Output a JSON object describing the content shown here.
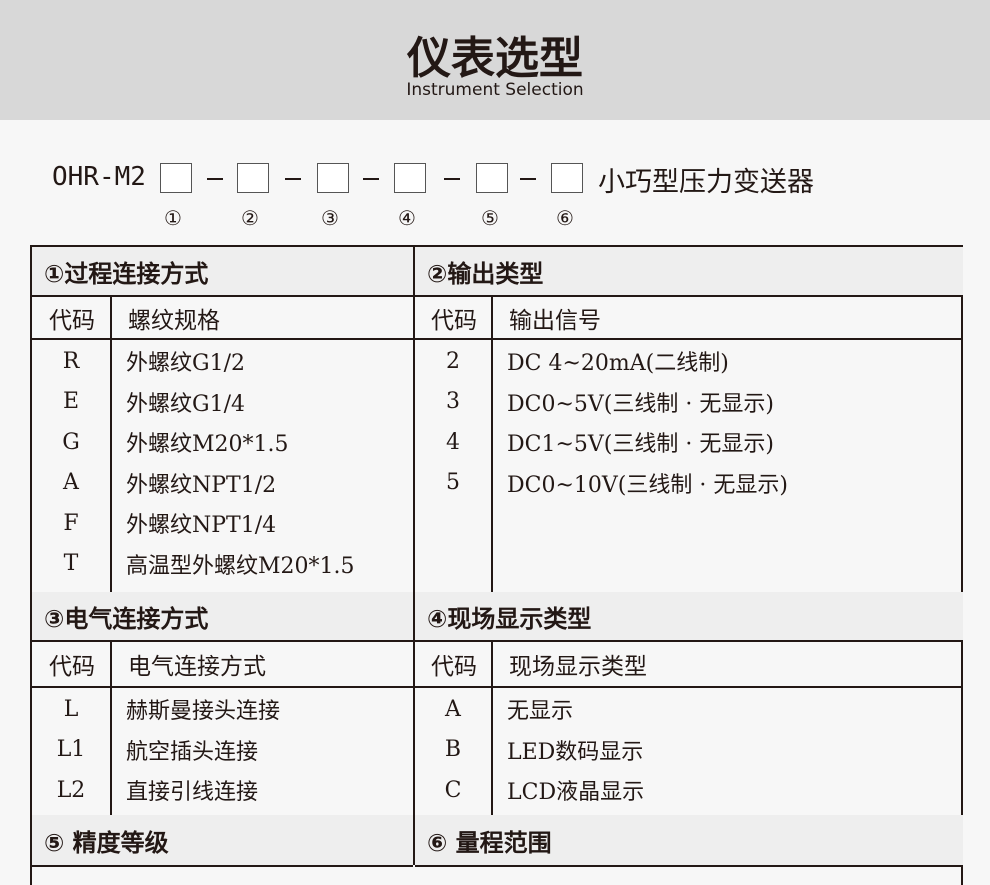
{
  "header": {
    "title": "仪表选型",
    "subtitle": "Instrument Selection"
  },
  "model": {
    "prefix": "OHR-M2",
    "suffix": "小巧型压力变送器",
    "positions": [
      "①",
      "②",
      "③",
      "④",
      "⑤",
      "⑥"
    ]
  },
  "sections": [
    {
      "title": "①过程连接方式",
      "code_header": "代码",
      "desc_header": "螺纹规格",
      "rows": [
        [
          "R",
          "外螺纹G1/2"
        ],
        [
          "E",
          "外螺纹G1/4"
        ],
        [
          "G",
          "外螺纹M20*1.5"
        ],
        [
          "A",
          "外螺纹NPT1/2"
        ],
        [
          "F",
          "外螺纹NPT1/4"
        ],
        [
          "T",
          "高温型外螺纹M20*1.5"
        ]
      ]
    },
    {
      "title": "②输出类型",
      "code_header": "代码",
      "desc_header": "输出信号",
      "rows": [
        [
          "2",
          "DC 4~20mA(二线制)"
        ],
        [
          "3",
          "DC0~5V(三线制 · 无显示)"
        ],
        [
          "4",
          "DC1~5V(三线制 · 无显示)"
        ],
        [
          "5",
          "DC0~10V(三线制 · 无显示)"
        ]
      ]
    },
    {
      "title": "③电气连接方式",
      "code_header": "代码",
      "desc_header": "电气连接方式",
      "rows": [
        [
          "L",
          "赫斯曼接头连接"
        ],
        [
          "L1",
          "航空插头连接"
        ],
        [
          "L2",
          "直接引线连接"
        ]
      ]
    },
    {
      "title": "④现场显示类型",
      "code_header": "代码",
      "desc_header": "现场显示类型",
      "rows": [
        [
          "A",
          "无显示"
        ],
        [
          "B",
          "LED数码显示"
        ],
        [
          "C",
          "LCD液晶显示"
        ]
      ]
    },
    {
      "title": "⑤ 精度等级"
    },
    {
      "title": "⑥ 量程范围"
    }
  ]
}
